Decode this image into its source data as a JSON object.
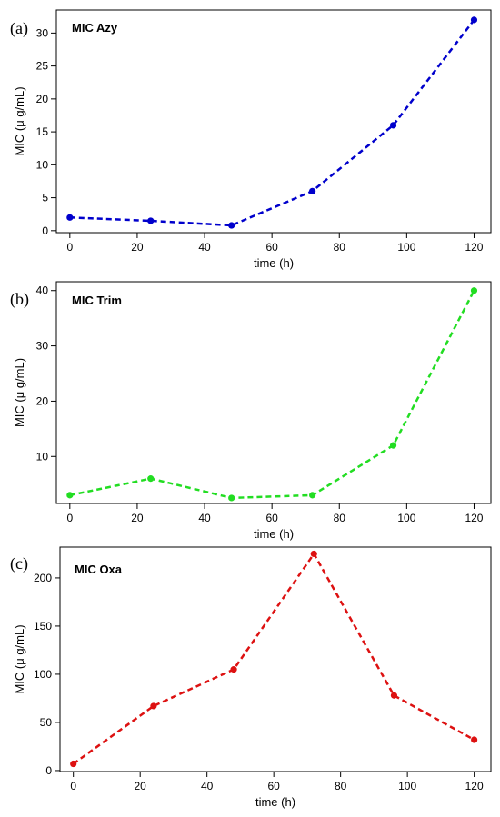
{
  "chart_data": [
    {
      "type": "line",
      "panel_label": "(a)",
      "title": "MIC Azy",
      "xlabel": "time (h)",
      "ylabel": "MIC (μ g/mL)",
      "x": [
        0,
        24,
        48,
        72,
        96,
        120
      ],
      "y": [
        2,
        1.5,
        0.8,
        6,
        16,
        32
      ],
      "xlim": [
        -4,
        125
      ],
      "ylim": [
        -0.3,
        33.5
      ],
      "xticks": [
        0,
        20,
        40,
        60,
        80,
        100,
        120
      ],
      "yticks": [
        0,
        5,
        10,
        15,
        20,
        25,
        30
      ],
      "color": "#0000cc",
      "line_style": "dashed",
      "marker": "circle",
      "legend": "none",
      "grid": false
    },
    {
      "type": "line",
      "panel_label": "(b)",
      "title": "MIC Trim",
      "xlabel": "time (h)",
      "ylabel": "MIC (μ g/mL)",
      "x": [
        0,
        24,
        48,
        72,
        96,
        120
      ],
      "y": [
        3,
        6,
        2.5,
        3,
        12,
        40
      ],
      "xlim": [
        -4,
        125
      ],
      "ylim": [
        1.5,
        41.6
      ],
      "xticks": [
        0,
        20,
        40,
        60,
        80,
        100,
        120
      ],
      "yticks": [
        10,
        20,
        30,
        40
      ],
      "color": "#22dd22",
      "line_style": "dashed",
      "marker": "circle",
      "legend": "none",
      "grid": false
    },
    {
      "type": "line",
      "panel_label": "(c)",
      "title": "MIC Oxa",
      "xlabel": "time (h)",
      "ylabel": "MIC (μ g/mL)",
      "x": [
        0,
        24,
        48,
        72,
        96,
        120
      ],
      "y": [
        7,
        67,
        105,
        225,
        78,
        32
      ],
      "xlim": [
        -4,
        125
      ],
      "ylim": [
        -1,
        232
      ],
      "xticks": [
        0,
        20,
        40,
        60,
        80,
        100,
        120
      ],
      "yticks": [
        0,
        50,
        100,
        150,
        200
      ],
      "color": "#dd1111",
      "line_style": "dashed",
      "marker": "circle",
      "legend": "none",
      "grid": false
    }
  ]
}
